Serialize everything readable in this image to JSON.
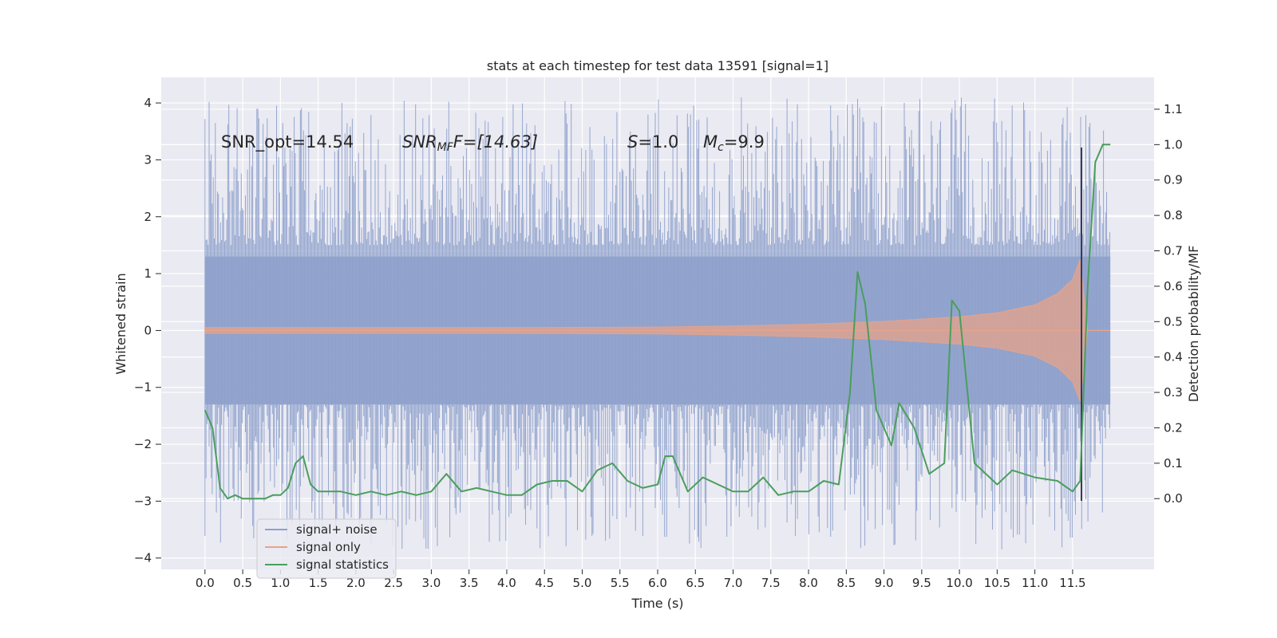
{
  "chart_data": {
    "type": "line",
    "title": "stats at each timestep for test data 13591 [signal=1]",
    "xlabel": "Time (s)",
    "ylabel": "Whitened strain",
    "ylabel_right": "Detection probability/MF",
    "xlim": [
      -0.58,
      12.58
    ],
    "ylim": [
      -4.2,
      4.45
    ],
    "ylim_right": [
      -0.2,
      1.19
    ],
    "x_ticks": [
      "0.0",
      "0.5",
      "1.0",
      "1.5",
      "2.0",
      "2.5",
      "3.0",
      "3.5",
      "4.0",
      "4.5",
      "5.0",
      "5.5",
      "6.0",
      "6.5",
      "7.0",
      "7.5",
      "8.0",
      "8.5",
      "9.0",
      "9.5",
      "10.0",
      "10.5",
      "11.0",
      "11.5"
    ],
    "y_ticks": [
      "−4",
      "−3",
      "−2",
      "−1",
      "0",
      "1",
      "2",
      "3",
      "4"
    ],
    "y_ticks_right": [
      "0.0",
      "0.1",
      "0.2",
      "0.3",
      "0.4",
      "0.5",
      "0.6",
      "0.7",
      "0.8",
      "0.9",
      "1.0",
      "1.1"
    ],
    "grid": true,
    "legend_placement": "lower-left",
    "annotations": {
      "snr_opt": "SNR_opt=14.54",
      "snr_mf_main": "SNR",
      "snr_mf_sub": "MF",
      "snr_mf_rest": "F=[14.63]",
      "s_var": "S",
      "s_rest": "=1.0",
      "mc_var": "M",
      "mc_sub": "c",
      "mc_rest": "=9.9"
    },
    "series": [
      {
        "name": "signal+ noise",
        "color": "#8da0cb",
        "x_range": [
          0.0,
          12.0
        ],
        "band_y": [
          -1.3,
          1.3
        ],
        "spike_top_range": [
          1.5,
          4.1
        ],
        "spike_bottom_range": [
          -3.85,
          -1.3
        ]
      },
      {
        "name": "signal only",
        "color": "#e6a38a",
        "envelope_x": [
          0.0,
          2.0,
          4.0,
          6.0,
          7.0,
          8.0,
          9.0,
          10.0,
          10.5,
          11.0,
          11.3,
          11.5,
          11.6,
          11.7
        ],
        "envelope_y": [
          0.05,
          0.05,
          0.05,
          0.06,
          0.08,
          0.11,
          0.16,
          0.24,
          0.31,
          0.45,
          0.65,
          0.9,
          1.25,
          0.0
        ]
      },
      {
        "name": "signal statistics",
        "color": "#4a9e5c",
        "x": [
          0.0,
          0.1,
          0.2,
          0.3,
          0.4,
          0.5,
          0.6,
          0.8,
          0.9,
          1.0,
          1.1,
          1.2,
          1.3,
          1.4,
          1.5,
          1.6,
          1.7,
          1.8,
          2.0,
          2.2,
          2.4,
          2.6,
          2.8,
          3.0,
          3.2,
          3.4,
          3.6,
          3.8,
          4.0,
          4.2,
          4.4,
          4.6,
          4.8,
          5.0,
          5.2,
          5.4,
          5.6,
          5.8,
          6.0,
          6.1,
          6.2,
          6.4,
          6.6,
          6.8,
          7.0,
          7.2,
          7.4,
          7.6,
          7.8,
          8.0,
          8.2,
          8.4,
          8.55,
          8.65,
          8.75,
          8.9,
          9.1,
          9.2,
          9.4,
          9.6,
          9.8,
          9.9,
          10.0,
          10.2,
          10.5,
          10.7,
          11.0,
          11.3,
          11.5,
          11.6,
          11.7,
          11.8,
          11.9,
          12.0
        ],
        "y": [
          0.25,
          0.2,
          0.03,
          0.0,
          0.01,
          0.0,
          0.0,
          0.0,
          0.01,
          0.01,
          0.03,
          0.1,
          0.12,
          0.04,
          0.02,
          0.02,
          0.02,
          0.02,
          0.01,
          0.02,
          0.01,
          0.02,
          0.01,
          0.02,
          0.07,
          0.02,
          0.03,
          0.02,
          0.01,
          0.01,
          0.04,
          0.05,
          0.05,
          0.02,
          0.08,
          0.1,
          0.05,
          0.03,
          0.04,
          0.12,
          0.12,
          0.02,
          0.06,
          0.04,
          0.02,
          0.02,
          0.06,
          0.01,
          0.02,
          0.02,
          0.05,
          0.04,
          0.3,
          0.64,
          0.55,
          0.25,
          0.15,
          0.27,
          0.2,
          0.07,
          0.1,
          0.56,
          0.53,
          0.1,
          0.04,
          0.08,
          0.06,
          0.05,
          0.02,
          0.05,
          0.6,
          0.95,
          1.0,
          1.0
        ]
      }
    ]
  }
}
